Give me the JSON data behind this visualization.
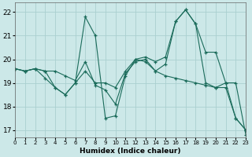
{
  "xlabel": "Humidex (Indice chaleur)",
  "ylabel": "",
  "background_color": "#cce8e8",
  "grid_color": "#aad0d0",
  "line_color": "#1a6b5a",
  "xlim": [
    0,
    23
  ],
  "ylim": [
    16.7,
    22.4
  ],
  "yticks": [
    17,
    18,
    19,
    20,
    21,
    22
  ],
  "xticks": [
    0,
    1,
    2,
    3,
    4,
    5,
    6,
    7,
    8,
    9,
    10,
    11,
    12,
    13,
    14,
    15,
    16,
    17,
    18,
    19,
    20,
    21,
    22,
    23
  ],
  "lines": [
    {
      "x": [
        0,
        1,
        2,
        3,
        4,
        5,
        6,
        7,
        8,
        9,
        10,
        11,
        12,
        13,
        14,
        15,
        16,
        17,
        18,
        19,
        20,
        21,
        22,
        23
      ],
      "y": [
        19.6,
        19.5,
        19.6,
        19.5,
        18.8,
        18.5,
        19.0,
        21.8,
        21.0,
        17.5,
        17.6,
        19.3,
        20.0,
        20.1,
        19.9,
        20.1,
        21.6,
        22.1,
        21.5,
        20.3,
        20.3,
        19.0,
        19.0,
        16.8
      ]
    },
    {
      "x": [
        0,
        1,
        2,
        3,
        4,
        5,
        6,
        7,
        8,
        9,
        10,
        11,
        12,
        13,
        14,
        15,
        16,
        17,
        18,
        19,
        20,
        21,
        22,
        23
      ],
      "y": [
        19.6,
        19.5,
        19.6,
        19.5,
        19.5,
        19.3,
        19.1,
        19.9,
        18.9,
        18.7,
        18.1,
        19.4,
        19.9,
        20.0,
        19.5,
        19.3,
        19.2,
        19.1,
        19.0,
        18.9,
        18.8,
        18.8,
        17.5,
        17.0
      ]
    },
    {
      "x": [
        0,
        1,
        2,
        3,
        4,
        5,
        6,
        7,
        8,
        9,
        10,
        11,
        12,
        13,
        14,
        15,
        16,
        17,
        18,
        19,
        20,
        21,
        22,
        23
      ],
      "y": [
        19.6,
        19.5,
        19.6,
        19.2,
        18.8,
        18.5,
        19.0,
        19.5,
        19.0,
        19.0,
        18.8,
        19.5,
        20.0,
        19.9,
        19.5,
        19.8,
        21.6,
        22.1,
        21.5,
        19.0,
        18.8,
        19.0,
        17.5,
        17.0
      ]
    }
  ]
}
